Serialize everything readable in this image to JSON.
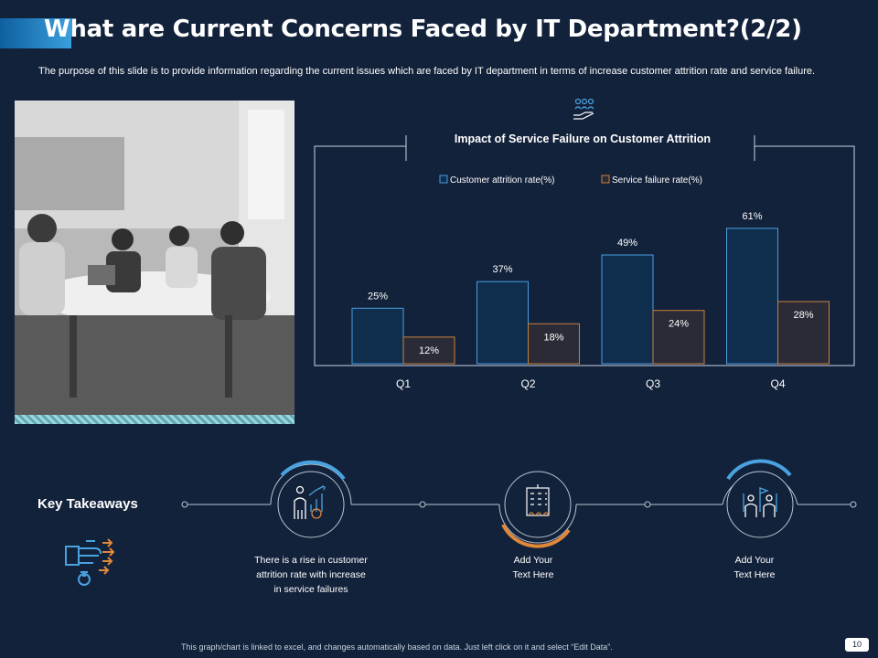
{
  "title": "What are Current Concerns Faced by IT Department?(2/2)",
  "subtitle": "The purpose of this slide is to provide information regarding the current issues which are faced by IT department in terms of increase customer attrition rate and service failure.",
  "colors": {
    "background": "#13223b",
    "attrition_fill": "#0f2e4e",
    "attrition_stroke": "#4a9fe0",
    "failure_fill": "#2a2b36",
    "failure_stroke": "#c9803e",
    "accent_blue": "#4aa3e0",
    "accent_orange": "#e0883a"
  },
  "chart_data": {
    "type": "bar",
    "title": "Impact of Service Failure on Customer Attrition",
    "categories": [
      "Q1",
      "Q2",
      "Q3",
      "Q4"
    ],
    "series": [
      {
        "name": "Customer attrition rate(%)",
        "values": [
          25,
          37,
          49,
          61
        ],
        "labels": [
          "25%",
          "37%",
          "49%",
          "61%"
        ]
      },
      {
        "name": "Service failure rate(%)",
        "values": [
          12,
          18,
          24,
          28
        ],
        "labels": [
          "12%",
          "18%",
          "24%",
          "28%"
        ]
      }
    ],
    "ylim": [
      0,
      70
    ],
    "grid": false,
    "legend": "top-center"
  },
  "key_takeaways": {
    "title": "Key Takeaways",
    "items": [
      {
        "icon": "people-chart-icon",
        "text_lines": [
          "There is a rise in customer",
          "attrition rate with increase",
          "in service failures"
        ]
      },
      {
        "icon": "building-icon",
        "text_lines": [
          "Add Your",
          "Text Here"
        ]
      },
      {
        "icon": "team-flag-icon",
        "text_lines": [
          "Add Your",
          "Text Here"
        ]
      }
    ]
  },
  "footer": "This graph/chart is linked to excel, and changes automatically based on data. Just left click on it and select “Edit Data”.",
  "page_number": "10"
}
